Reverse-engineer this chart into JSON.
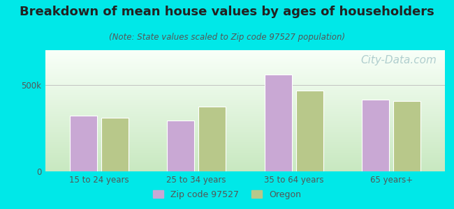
{
  "title": "Breakdown of mean house values by ages of householders",
  "subtitle": "(Note: State values scaled to Zip code 97527 population)",
  "categories": [
    "15 to 24 years",
    "25 to 34 years",
    "35 to 64 years",
    "65 years+"
  ],
  "zip_values": [
    320000,
    295000,
    560000,
    415000
  ],
  "oregon_values": [
    310000,
    375000,
    465000,
    408000
  ],
  "zip_color": "#c9a8d4",
  "oregon_color": "#b8c88a",
  "bar_edge_color": "#ffffff",
  "ylim": [
    0,
    700000
  ],
  "yticks": [
    0,
    500000
  ],
  "ytick_labels": [
    "0",
    "500k"
  ],
  "background_color": "#00e8e8",
  "plot_bg_topleft": "#d4ecd4",
  "plot_bg_topright": "#f0faf0",
  "plot_bg_bottom": "#c8e8c8",
  "legend_zip_label": "Zip code 97527",
  "legend_oregon_label": "Oregon",
  "title_fontsize": 13,
  "subtitle_fontsize": 8.5,
  "tick_fontsize": 8.5,
  "legend_fontsize": 9,
  "watermark_text": "City-Data.com",
  "watermark_color": "#b0cece",
  "watermark_fontsize": 11,
  "title_color": "#222222",
  "subtitle_color": "#555555",
  "tick_color": "#555555"
}
